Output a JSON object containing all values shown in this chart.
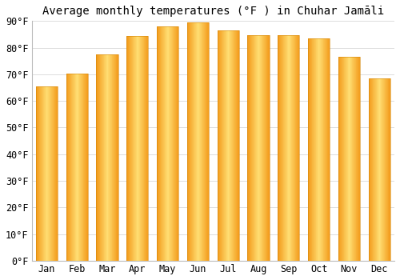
{
  "months": [
    "Jan",
    "Feb",
    "Mar",
    "Apr",
    "May",
    "Jun",
    "Jul",
    "Aug",
    "Sep",
    "Oct",
    "Nov",
    "Dec"
  ],
  "values": [
    65.5,
    70.2,
    77.5,
    84.5,
    88.0,
    89.5,
    86.5,
    84.8,
    84.8,
    83.5,
    76.5,
    68.5
  ],
  "title": "Average monthly temperatures (°F ) in Chuhar Jamāli",
  "ylim": [
    0,
    90
  ],
  "yticks": [
    0,
    10,
    20,
    30,
    40,
    50,
    60,
    70,
    80,
    90
  ],
  "ytick_labels": [
    "0°F",
    "10°F",
    "20°F",
    "30°F",
    "40°F",
    "50°F",
    "60°F",
    "70°F",
    "80°F",
    "90°F"
  ],
  "bar_color_center": "#FFD966",
  "bar_color_edge": "#F0A020",
  "background_color": "#ffffff",
  "plot_bg_color": "#ffffff",
  "title_fontsize": 10,
  "tick_fontsize": 8.5,
  "grid_color": "#dddddd"
}
